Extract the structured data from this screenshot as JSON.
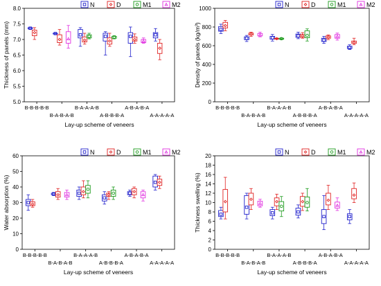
{
  "chart_data": [
    {
      "type": "box",
      "xlabel": "Lay-up scheme of veneers",
      "ylabel": "Thickness of panels (mm)",
      "ylim": [
        5.0,
        8.0
      ],
      "yticks": [
        "5.0",
        "5.5",
        "6.0",
        "6.5",
        "7.0",
        "7.5",
        "8.0"
      ],
      "categories": [
        "B-B-B-B-B",
        "B-A-B-A-B",
        "B-A-A-A-B",
        "A-B-B-B-A",
        "A-B-A-B-A",
        "A-A-A-A-A"
      ],
      "legend_position": "top-right",
      "series": [
        {
          "name": "N",
          "color": "#1f1fcc",
          "symbol": "square",
          "boxes": [
            {
              "cat": 0,
              "min": 7.32,
              "q1": 7.34,
              "med": 7.36,
              "q3": 7.38,
              "max": 7.4
            },
            {
              "cat": 1,
              "min": 7.18,
              "q1": 7.18,
              "med": 7.19,
              "q3": 7.2,
              "max": 7.2
            },
            {
              "cat": 2,
              "min": 6.78,
              "q1": 7.05,
              "med": 7.15,
              "q3": 7.32,
              "max": 7.38
            },
            {
              "cat": 3,
              "min": 6.5,
              "q1": 6.95,
              "med": 7.1,
              "q3": 7.2,
              "max": 7.25
            },
            {
              "cat": 4,
              "min": 6.45,
              "q1": 6.88,
              "med": 7.1,
              "q3": 7.22,
              "max": 7.4
            },
            {
              "cat": 5,
              "min": 6.95,
              "q1": 7.05,
              "med": 7.15,
              "q3": 7.22,
              "max": 7.35
            }
          ]
        },
        {
          "name": "D",
          "color": "#e02020",
          "symbol": "diamond",
          "boxes": [
            {
              "cat": 0,
              "min": 7.0,
              "q1": 7.12,
              "med": 7.22,
              "q3": 7.3,
              "max": 7.38
            },
            {
              "cat": 1,
              "min": 6.82,
              "q1": 6.9,
              "med": 7.0,
              "q3": 7.15,
              "max": 7.32
            },
            {
              "cat": 2,
              "min": 6.85,
              "q1": 6.92,
              "med": 6.98,
              "q3": 7.08,
              "max": 7.2
            },
            {
              "cat": 3,
              "min": 6.78,
              "q1": 6.85,
              "med": 6.95,
              "q3": 7.05,
              "max": 7.2
            },
            {
              "cat": 4,
              "min": 6.88,
              "q1": 6.95,
              "med": 7.0,
              "q3": 7.08,
              "max": 7.18
            },
            {
              "cat": 5,
              "min": 6.35,
              "q1": 6.55,
              "med": 6.72,
              "q3": 6.88,
              "max": 7.0
            }
          ]
        },
        {
          "name": "M1",
          "color": "#1a9a1a",
          "symbol": "circle",
          "boxes": [
            {
              "cat": 2,
              "min": 7.02,
              "q1": 7.05,
              "med": 7.1,
              "q3": 7.15,
              "max": 7.2
            },
            {
              "cat": 3,
              "min": 7.02,
              "q1": 7.04,
              "med": 7.07,
              "q3": 7.1,
              "max": 7.12
            }
          ]
        },
        {
          "name": "M2",
          "color": "#e030e0",
          "symbol": "triangle",
          "boxes": [
            {
              "cat": 1,
              "min": 6.72,
              "q1": 6.88,
              "med": 7.02,
              "q3": 7.25,
              "max": 7.45
            },
            {
              "cat": 4,
              "min": 6.88,
              "q1": 6.9,
              "med": 6.95,
              "q3": 7.0,
              "max": 7.05
            }
          ]
        }
      ]
    },
    {
      "type": "box",
      "xlabel": "Lay-up scheme of veneers",
      "ylabel": "Density of panels (kg/m³)",
      "ylim": [
        0,
        1000
      ],
      "yticks": [
        "0",
        "200",
        "400",
        "600",
        "800",
        "1000"
      ],
      "categories": [
        "B-B-B-B-B",
        "B-A-B-A-B",
        "B-A-A-A-B",
        "A-B-B-B-A",
        "A-B-A-B-A",
        "A-A-A-A-A"
      ],
      "legend_position": "top-right",
      "series": [
        {
          "name": "N",
          "color": "#1f1fcc",
          "symbol": "square",
          "boxes": [
            {
              "cat": 0,
              "min": 730,
              "q1": 755,
              "med": 775,
              "q3": 805,
              "max": 830
            },
            {
              "cat": 1,
              "min": 645,
              "q1": 665,
              "med": 680,
              "q3": 695,
              "max": 710
            },
            {
              "cat": 2,
              "min": 650,
              "q1": 670,
              "med": 685,
              "q3": 700,
              "max": 720
            },
            {
              "cat": 3,
              "min": 675,
              "q1": 690,
              "med": 705,
              "q3": 725,
              "max": 745
            },
            {
              "cat": 4,
              "min": 625,
              "q1": 645,
              "med": 660,
              "q3": 680,
              "max": 700
            },
            {
              "cat": 5,
              "min": 560,
              "q1": 570,
              "med": 580,
              "q3": 595,
              "max": 610
            }
          ]
        },
        {
          "name": "D",
          "color": "#e02020",
          "symbol": "diamond",
          "boxes": [
            {
              "cat": 0,
              "min": 760,
              "q1": 790,
              "med": 815,
              "q3": 850,
              "max": 870
            },
            {
              "cat": 1,
              "min": 700,
              "q1": 715,
              "med": 725,
              "q3": 735,
              "max": 745
            },
            {
              "cat": 2,
              "min": 670,
              "q1": 672,
              "med": 675,
              "q3": 678,
              "max": 682
            },
            {
              "cat": 3,
              "min": 680,
              "q1": 690,
              "med": 705,
              "q3": 720,
              "max": 740
            },
            {
              "cat": 4,
              "min": 665,
              "q1": 680,
              "med": 692,
              "q3": 705,
              "max": 715
            },
            {
              "cat": 5,
              "min": 610,
              "q1": 625,
              "med": 635,
              "q3": 650,
              "max": 680
            }
          ]
        },
        {
          "name": "M1",
          "color": "#1a9a1a",
          "symbol": "circle",
          "boxes": [
            {
              "cat": 2,
              "min": 665,
              "q1": 670,
              "med": 675,
              "q3": 680,
              "max": 685
            },
            {
              "cat": 3,
              "min": 650,
              "q1": 685,
              "med": 710,
              "q3": 760,
              "max": 780
            }
          ]
        },
        {
          "name": "M2",
          "color": "#e030e0",
          "symbol": "triangle",
          "boxes": [
            {
              "cat": 1,
              "min": 695,
              "q1": 705,
              "med": 715,
              "q3": 730,
              "max": 745
            },
            {
              "cat": 4,
              "min": 660,
              "q1": 680,
              "med": 700,
              "q3": 720,
              "max": 735
            }
          ]
        }
      ]
    },
    {
      "type": "box",
      "xlabel": "Lay-up scheme of veneers",
      "ylabel": "Water absorption (%)",
      "ylim": [
        0,
        60
      ],
      "yticks": [
        "0",
        "10",
        "20",
        "30",
        "40",
        "50",
        "60"
      ],
      "categories": [
        "B-B-B-B-B",
        "B-A-B-A-B",
        "B-A-A-A-B",
        "A-B-B-B-A",
        "A-B-A-B-A",
        "A-A-A-A-A"
      ],
      "legend_position": "top-right",
      "series": [
        {
          "name": "N",
          "color": "#1f1fcc",
          "symbol": "square",
          "boxes": [
            {
              "cat": 0,
              "min": 25,
              "q1": 28,
              "med": 30,
              "q3": 32,
              "max": 35
            },
            {
              "cat": 1,
              "min": 34.5,
              "q1": 35,
              "med": 35.5,
              "q3": 36,
              "max": 36.5
            },
            {
              "cat": 2,
              "min": 32,
              "q1": 34,
              "med": 36,
              "q3": 38,
              "max": 40
            },
            {
              "cat": 3,
              "min": 29,
              "q1": 31,
              "med": 33,
              "q3": 35,
              "max": 37
            },
            {
              "cat": 4,
              "min": 34,
              "q1": 35,
              "med": 36,
              "q3": 37,
              "max": 38
            },
            {
              "cat": 5,
              "min": 38,
              "q1": 40,
              "med": 43,
              "q3": 47,
              "max": 48
            }
          ]
        },
        {
          "name": "D",
          "color": "#e02020",
          "symbol": "diamond",
          "boxes": [
            {
              "cat": 0,
              "min": 27,
              "q1": 28,
              "med": 29,
              "q3": 30.5,
              "max": 32
            },
            {
              "cat": 1,
              "min": 32,
              "q1": 33.5,
              "med": 35,
              "q3": 37,
              "max": 39
            },
            {
              "cat": 2,
              "min": 33,
              "q1": 35,
              "med": 37,
              "q3": 40,
              "max": 44
            },
            {
              "cat": 3,
              "min": 32,
              "q1": 34,
              "med": 35,
              "q3": 36,
              "max": 37
            },
            {
              "cat": 4,
              "min": 33,
              "q1": 35,
              "med": 37,
              "q3": 39,
              "max": 40
            },
            {
              "cat": 5,
              "min": 39,
              "q1": 41,
              "med": 43,
              "q3": 45,
              "max": 47
            }
          ]
        },
        {
          "name": "M1",
          "color": "#1a9a1a",
          "symbol": "circle",
          "boxes": [
            {
              "cat": 2,
              "min": 33,
              "q1": 36,
              "med": 38.5,
              "q3": 41,
              "max": 44
            },
            {
              "cat": 3,
              "min": 32,
              "q1": 34,
              "med": 36,
              "q3": 38,
              "max": 40
            }
          ]
        },
        {
          "name": "M2",
          "color": "#e030e0",
          "symbol": "triangle",
          "boxes": [
            {
              "cat": 1,
              "min": 32,
              "q1": 33.5,
              "med": 35,
              "q3": 36.5,
              "max": 38
            },
            {
              "cat": 4,
              "min": 31,
              "q1": 33,
              "med": 35,
              "q3": 37,
              "max": 38
            }
          ]
        }
      ]
    },
    {
      "type": "box",
      "xlabel": "Lay-up scheme of veneers",
      "ylabel": "Thickness swelling (%)",
      "ylim": [
        0,
        20
      ],
      "yticks": [
        "0",
        "2",
        "4",
        "6",
        "8",
        "10",
        "12",
        "14",
        "16",
        "18",
        "20"
      ],
      "categories": [
        "B-B-B-B-B",
        "B-A-B-A-B",
        "B-A-A-A-B",
        "A-B-B-B-A",
        "A-B-A-B-A",
        "A-A-A-A-A"
      ],
      "legend_position": "top-right",
      "series": [
        {
          "name": "N",
          "color": "#1f1fcc",
          "symbol": "square",
          "boxes": [
            {
              "cat": 0,
              "min": 6.5,
              "q1": 7,
              "med": 7.5,
              "q3": 8.3,
              "max": 9
            },
            {
              "cat": 1,
              "min": 6.5,
              "q1": 7.5,
              "med": 9,
              "q3": 11.5,
              "max": 12
            },
            {
              "cat": 2,
              "min": 6.5,
              "q1": 7.2,
              "med": 7.8,
              "q3": 8.5,
              "max": 9
            },
            {
              "cat": 3,
              "min": 6.7,
              "q1": 7.3,
              "med": 8,
              "q3": 8.8,
              "max": 9.5
            },
            {
              "cat": 4,
              "min": 4.2,
              "q1": 5.5,
              "med": 7,
              "q3": 8.5,
              "max": 11.5
            },
            {
              "cat": 5,
              "min": 5.5,
              "q1": 6.3,
              "med": 7,
              "q3": 7.6,
              "max": 8.5
            }
          ]
        },
        {
          "name": "D",
          "color": "#e02020",
          "symbol": "diamond",
          "boxes": [
            {
              "cat": 0,
              "min": 6.5,
              "q1": 8,
              "med": 10.2,
              "q3": 12.8,
              "max": 15.4
            },
            {
              "cat": 1,
              "min": 8.5,
              "q1": 9.5,
              "med": 10.7,
              "q3": 12,
              "max": 13
            },
            {
              "cat": 2,
              "min": 8.5,
              "q1": 9.3,
              "med": 10.2,
              "q3": 11,
              "max": 11.8
            },
            {
              "cat": 3,
              "min": 8.3,
              "q1": 9.2,
              "med": 10.2,
              "q3": 11.3,
              "max": 12
            },
            {
              "cat": 4,
              "min": 8.5,
              "q1": 9.5,
              "med": 10.5,
              "q3": 12,
              "max": 13.7
            },
            {
              "cat": 5,
              "min": 10,
              "q1": 10.8,
              "med": 11.6,
              "q3": 13,
              "max": 14.2
            }
          ]
        },
        {
          "name": "M1",
          "color": "#1a9a1a",
          "symbol": "circle",
          "boxes": [
            {
              "cat": 2,
              "min": 7,
              "q1": 8.2,
              "med": 9.2,
              "q3": 10.2,
              "max": 11.3
            },
            {
              "cat": 3,
              "min": 8.2,
              "q1": 9,
              "med": 10,
              "q3": 11.2,
              "max": 13
            }
          ]
        },
        {
          "name": "M2",
          "color": "#e030e0",
          "symbol": "triangle",
          "boxes": [
            {
              "cat": 1,
              "min": 9,
              "q1": 9.3,
              "med": 9.8,
              "q3": 10.3,
              "max": 10.7
            },
            {
              "cat": 4,
              "min": 8.3,
              "q1": 8.8,
              "med": 9.4,
              "q3": 10.1,
              "max": 11
            }
          ]
        }
      ]
    }
  ]
}
